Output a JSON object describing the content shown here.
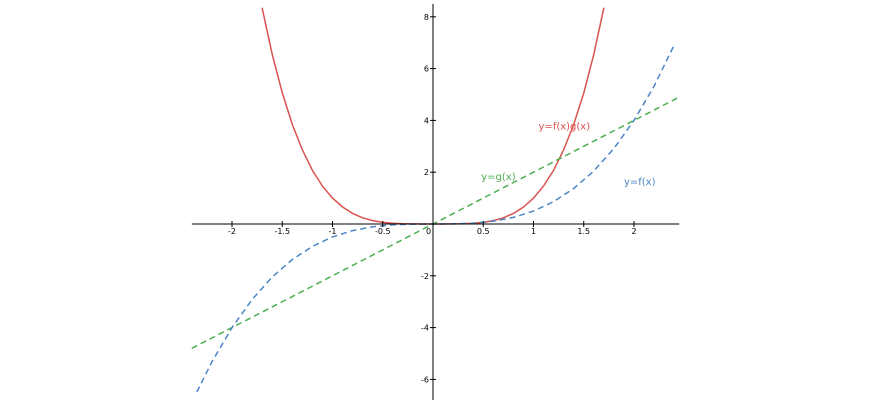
{
  "chart_data": {
    "type": "line",
    "title": "",
    "xlabel": "",
    "ylabel": "",
    "xlim": [
      -2.4,
      2.45
    ],
    "ylim": [
      -6.8,
      8.5
    ],
    "grid": false,
    "legend": "none",
    "x_ticks": [
      {
        "value": -2,
        "label": "-2"
      },
      {
        "value": -1.5,
        "label": "-1.5"
      },
      {
        "value": -1,
        "label": "-1"
      },
      {
        "value": -0.5,
        "label": "-0.5"
      },
      {
        "value": 0.5,
        "label": "0.5"
      },
      {
        "value": 1,
        "label": "1"
      },
      {
        "value": 1.5,
        "label": "1.5"
      },
      {
        "value": 2,
        "label": "2"
      }
    ],
    "y_ticks": [
      {
        "value": -6,
        "label": "-6"
      },
      {
        "value": -4,
        "label": "-4"
      },
      {
        "value": -2,
        "label": "-2"
      },
      {
        "value": 2,
        "label": "2"
      },
      {
        "value": 4,
        "label": "4"
      },
      {
        "value": 6,
        "label": "6"
      },
      {
        "value": 8,
        "label": "8"
      }
    ],
    "origin_label": "0",
    "series": [
      {
        "name": "y=f(x)g(x)",
        "color": "#d9534f",
        "style": "solid",
        "x": [
          -1.7,
          -1.6,
          -1.5,
          -1.4,
          -1.3,
          -1.2,
          -1.1,
          -1.0,
          -0.9,
          -0.8,
          -0.7,
          -0.6,
          -0.5,
          -0.4,
          -0.3,
          -0.2,
          -0.1,
          0,
          0.1,
          0.2,
          0.3,
          0.4,
          0.5,
          0.6,
          0.7,
          0.8,
          0.9,
          1.0,
          1.1,
          1.2,
          1.3,
          1.4,
          1.5,
          1.6,
          1.7
        ],
        "y": [
          8.352,
          6.554,
          5.063,
          3.842,
          2.856,
          2.074,
          1.464,
          1.0,
          0.656,
          0.41,
          0.24,
          0.13,
          0.063,
          0.026,
          0.008,
          0.002,
          0.0,
          0,
          0.0,
          0.002,
          0.008,
          0.026,
          0.063,
          0.13,
          0.24,
          0.41,
          0.656,
          1.0,
          1.464,
          2.074,
          2.856,
          3.842,
          5.063,
          6.554,
          8.352
        ]
      },
      {
        "name": "y=g(x)",
        "color": "#4caf50",
        "style": "dashed",
        "x": [
          -2.4,
          2.45
        ],
        "y": [
          -4.8,
          4.9
        ]
      },
      {
        "name": "y=f(x)",
        "color": "#4a86c8",
        "style": "dashed",
        "x": [
          -2.35,
          -2.2,
          -2.0,
          -1.8,
          -1.6,
          -1.4,
          -1.2,
          -1.0,
          -0.8,
          -0.6,
          -0.4,
          -0.2,
          0,
          0.2,
          0.4,
          0.6,
          0.8,
          1.0,
          1.2,
          1.4,
          1.6,
          1.8,
          2.0,
          2.2,
          2.4
        ],
        "y": [
          -6.489,
          -5.324,
          -4.0,
          -2.916,
          -2.048,
          -1.372,
          -0.864,
          -0.5,
          -0.256,
          -0.108,
          -0.032,
          -0.004,
          0,
          0.004,
          0.032,
          0.108,
          0.256,
          0.5,
          0.864,
          1.372,
          2.048,
          2.916,
          4.0,
          5.324,
          6.912
        ]
      }
    ],
    "annotations": [
      {
        "text": "y=f(x)g(x)",
        "x": 1.05,
        "y": 3.65,
        "color": "#d9534f"
      },
      {
        "text": "y=g(x)",
        "x": 0.48,
        "y": 1.7,
        "color": "#4caf50"
      },
      {
        "text": "y=f(x)",
        "x": 1.9,
        "y": 1.5,
        "color": "#4a86c8"
      }
    ]
  }
}
